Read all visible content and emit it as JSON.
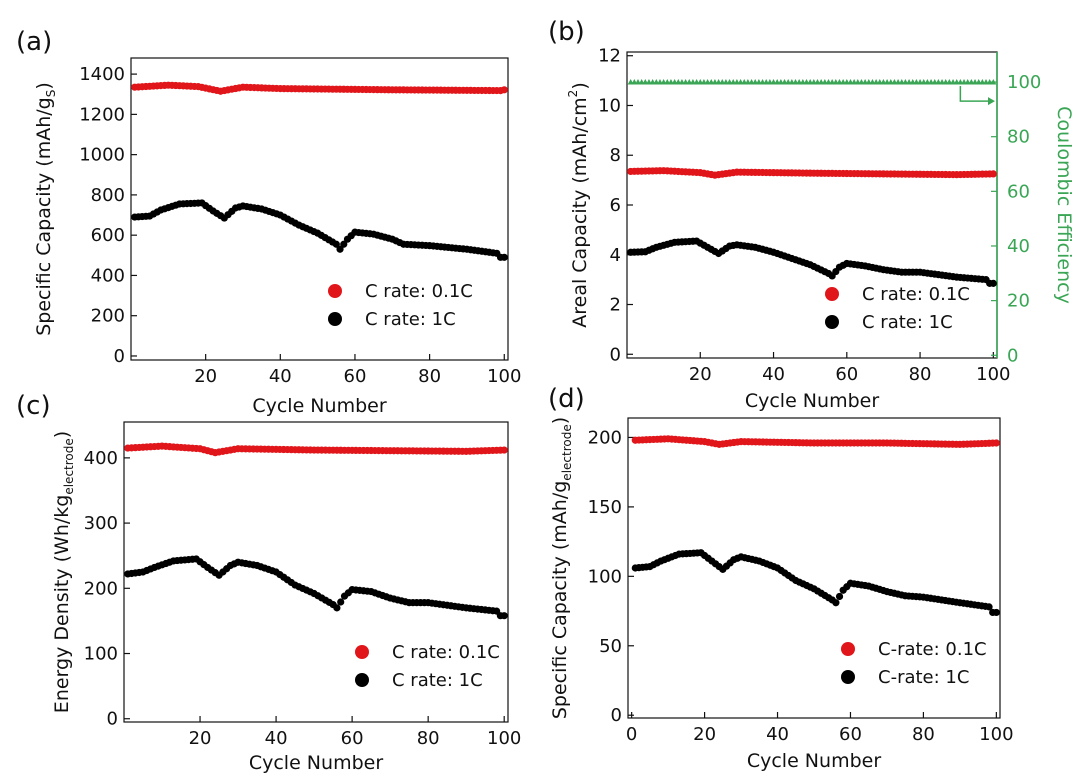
{
  "chart_data": [
    {
      "id": "a",
      "panel_label": "(a)",
      "type": "scatter",
      "xlabel": "Cycle Number",
      "ylabel": "Specific Capacity (mAh/g",
      "ylabel_sub": "S",
      "ylabel_end": ")",
      "xlim": [
        0,
        101
      ],
      "ylim": [
        -20,
        1480
      ],
      "xticks": [
        20,
        40,
        60,
        80,
        100
      ],
      "xtick_labels": [
        "20",
        "40",
        "60",
        "80",
        "100"
      ],
      "yticks": [
        0,
        200,
        400,
        600,
        800,
        1000,
        1200,
        1400
      ],
      "ytick_labels": [
        "0",
        "200",
        "400",
        "600",
        "800",
        "1000",
        "1200",
        "1400"
      ],
      "legend": [
        {
          "label": "C rate: 0.1C",
          "color": "#e0161b"
        },
        {
          "label": "C rate: 1C",
          "color": "#000000"
        }
      ],
      "series": [
        {
          "name": "C rate: 0.1C",
          "color": "#e0161b",
          "anchors": [
            [
              1,
              1335
            ],
            [
              10,
              1345
            ],
            [
              18,
              1338
            ],
            [
              24,
              1315
            ],
            [
              30,
              1335
            ],
            [
              40,
              1328
            ],
            [
              55,
              1325
            ],
            [
              70,
              1322
            ],
            [
              85,
              1320
            ],
            [
              99,
              1318
            ],
            [
              100,
              1322
            ]
          ]
        },
        {
          "name": "C rate: 1C",
          "color": "#000000",
          "anchors": [
            [
              1,
              690
            ],
            [
              5,
              695
            ],
            [
              8,
              725
            ],
            [
              13,
              755
            ],
            [
              19,
              760
            ],
            [
              22,
              720
            ],
            [
              25,
              685
            ],
            [
              28,
              735
            ],
            [
              30,
              745
            ],
            [
              35,
              730
            ],
            [
              40,
              700
            ],
            [
              45,
              650
            ],
            [
              50,
              610
            ],
            [
              55,
              555
            ],
            [
              56,
              530
            ],
            [
              58,
              580
            ],
            [
              60,
              615
            ],
            [
              65,
              605
            ],
            [
              70,
              580
            ],
            [
              73,
              555
            ],
            [
              80,
              548
            ],
            [
              90,
              530
            ],
            [
              98,
              510
            ],
            [
              99,
              490
            ],
            [
              100,
              490
            ]
          ]
        }
      ]
    },
    {
      "id": "b",
      "panel_label": "(b)",
      "type": "scatter",
      "xlabel": "Cycle Number",
      "ylabel": "Areal Capacity (mAh/cm",
      "ylabel_sup": "2",
      "ylabel_end": ")",
      "y2label": "Coulombic Efficiency",
      "xlim": [
        0,
        101
      ],
      "ylim": [
        -0.15,
        12.15
      ],
      "y2lim": [
        -1,
        111
      ],
      "xticks": [
        20,
        40,
        60,
        80,
        100
      ],
      "xtick_labels": [
        "20",
        "40",
        "60",
        "80",
        "100"
      ],
      "yticks": [
        0,
        2,
        4,
        6,
        8,
        10,
        12
      ],
      "ytick_labels": [
        "0",
        "2",
        "4",
        "6",
        "8",
        "10",
        "12"
      ],
      "y2ticks": [
        0,
        20,
        40,
        60,
        80,
        100
      ],
      "y2tick_labels": [
        "0",
        "20",
        "40",
        "60",
        "80",
        "100"
      ],
      "legend": [
        {
          "label": "C rate: 0.1C",
          "color": "#e0161b"
        },
        {
          "label": "C rate: 1C",
          "color": "#000000"
        }
      ],
      "series": [
        {
          "name": "C rate: 0.1C",
          "color": "#e0161b",
          "anchors": [
            [
              1,
              7.35
            ],
            [
              10,
              7.38
            ],
            [
              20,
              7.3
            ],
            [
              24,
              7.2
            ],
            [
              30,
              7.32
            ],
            [
              50,
              7.28
            ],
            [
              70,
              7.25
            ],
            [
              90,
              7.22
            ],
            [
              100,
              7.25
            ]
          ]
        },
        {
          "name": "C rate: 1C",
          "color": "#000000",
          "anchors": [
            [
              1,
              4.1
            ],
            [
              5,
              4.12
            ],
            [
              8,
              4.3
            ],
            [
              13,
              4.5
            ],
            [
              19,
              4.55
            ],
            [
              22,
              4.3
            ],
            [
              25,
              4.05
            ],
            [
              28,
              4.35
            ],
            [
              30,
              4.4
            ],
            [
              35,
              4.3
            ],
            [
              40,
              4.1
            ],
            [
              45,
              3.85
            ],
            [
              50,
              3.6
            ],
            [
              55,
              3.25
            ],
            [
              56,
              3.15
            ],
            [
              58,
              3.5
            ],
            [
              60,
              3.65
            ],
            [
              65,
              3.55
            ],
            [
              70,
              3.4
            ],
            [
              75,
              3.3
            ],
            [
              80,
              3.3
            ],
            [
              90,
              3.1
            ],
            [
              98,
              3.0
            ],
            [
              99,
              2.85
            ],
            [
              100,
              2.85
            ]
          ]
        },
        {
          "name": "Coulombic Efficiency",
          "axis": "y2",
          "color": "#3aa655",
          "marker": "triangle",
          "anchors": [
            [
              1,
              100
            ],
            [
              50,
              100
            ],
            [
              100,
              100
            ]
          ]
        }
      ]
    },
    {
      "id": "c",
      "panel_label": "(c)",
      "type": "scatter",
      "xlabel": "Cycle Number",
      "ylabel": "Energy Density (Wh/kg",
      "ylabel_sub": "electrode",
      "ylabel_end": ")",
      "xlim": [
        0,
        101
      ],
      "ylim": [
        -5,
        455
      ],
      "xticks": [
        20,
        40,
        60,
        80,
        100
      ],
      "xtick_labels": [
        "20",
        "40",
        "60",
        "80",
        "100"
      ],
      "yticks": [
        0,
        100,
        200,
        300,
        400
      ],
      "ytick_labels": [
        "0",
        "100",
        "200",
        "300",
        "400"
      ],
      "legend": [
        {
          "label": "C rate: 0.1C",
          "color": "#e0161b"
        },
        {
          "label": "C rate: 1C",
          "color": "#000000"
        }
      ],
      "series": [
        {
          "name": "C rate: 0.1C",
          "color": "#e0161b",
          "anchors": [
            [
              1,
              415
            ],
            [
              10,
              418
            ],
            [
              20,
              414
            ],
            [
              24,
              408
            ],
            [
              30,
              414
            ],
            [
              50,
              412
            ],
            [
              70,
              411
            ],
            [
              90,
              410
            ],
            [
              100,
              412
            ]
          ]
        },
        {
          "name": "C rate: 1C",
          "color": "#000000",
          "anchors": [
            [
              1,
              222
            ],
            [
              5,
              225
            ],
            [
              8,
              232
            ],
            [
              13,
              242
            ],
            [
              19,
              245
            ],
            [
              22,
              232
            ],
            [
              25,
              220
            ],
            [
              28,
              235
            ],
            [
              30,
              240
            ],
            [
              35,
              235
            ],
            [
              40,
              225
            ],
            [
              45,
              205
            ],
            [
              50,
              192
            ],
            [
              55,
              175
            ],
            [
              56,
              170
            ],
            [
              58,
              188
            ],
            [
              60,
              198
            ],
            [
              65,
              195
            ],
            [
              70,
              185
            ],
            [
              75,
              178
            ],
            [
              80,
              178
            ],
            [
              90,
              170
            ],
            [
              98,
              165
            ],
            [
              99,
              158
            ],
            [
              100,
              158
            ]
          ]
        }
      ]
    },
    {
      "id": "d",
      "panel_label": "(d)",
      "type": "scatter",
      "xlabel": "Cycle Number",
      "ylabel": "Specific Capacity (mAh/g",
      "ylabel_sub": "electrode",
      "ylabel_end": ")",
      "xlim": [
        -1,
        101
      ],
      "ylim": [
        -2,
        214
      ],
      "xticks": [
        0,
        20,
        40,
        60,
        80,
        100
      ],
      "xtick_labels": [
        "0",
        "20",
        "40",
        "60",
        "80",
        "100"
      ],
      "yticks": [
        0,
        50,
        100,
        150,
        200
      ],
      "ytick_labels": [
        "0",
        "50",
        "100",
        "150",
        "200"
      ],
      "legend": [
        {
          "label": "C-rate: 0.1C",
          "color": "#e0161b"
        },
        {
          "label": "C-rate: 1C",
          "color": "#000000"
        }
      ],
      "series": [
        {
          "name": "C-rate: 0.1C",
          "color": "#e0161b",
          "anchors": [
            [
              1,
              198
            ],
            [
              10,
              199
            ],
            [
              20,
              197
            ],
            [
              24,
              195
            ],
            [
              30,
              197
            ],
            [
              50,
              196
            ],
            [
              70,
              196
            ],
            [
              90,
              195
            ],
            [
              100,
              196
            ]
          ]
        },
        {
          "name": "C-rate: 1C",
          "color": "#000000",
          "anchors": [
            [
              1,
              106
            ],
            [
              5,
              107
            ],
            [
              8,
              111
            ],
            [
              13,
              116
            ],
            [
              19,
              117
            ],
            [
              22,
              111
            ],
            [
              25,
              105
            ],
            [
              28,
              112
            ],
            [
              30,
              114
            ],
            [
              35,
              111
            ],
            [
              40,
              106
            ],
            [
              45,
              97
            ],
            [
              50,
              91
            ],
            [
              55,
              83
            ],
            [
              56,
              81
            ],
            [
              58,
              90
            ],
            [
              60,
              95
            ],
            [
              65,
              93
            ],
            [
              70,
              89
            ],
            [
              75,
              86
            ],
            [
              80,
              85
            ],
            [
              90,
              81
            ],
            [
              98,
              78
            ],
            [
              99,
              74
            ],
            [
              100,
              74
            ]
          ]
        }
      ]
    }
  ]
}
